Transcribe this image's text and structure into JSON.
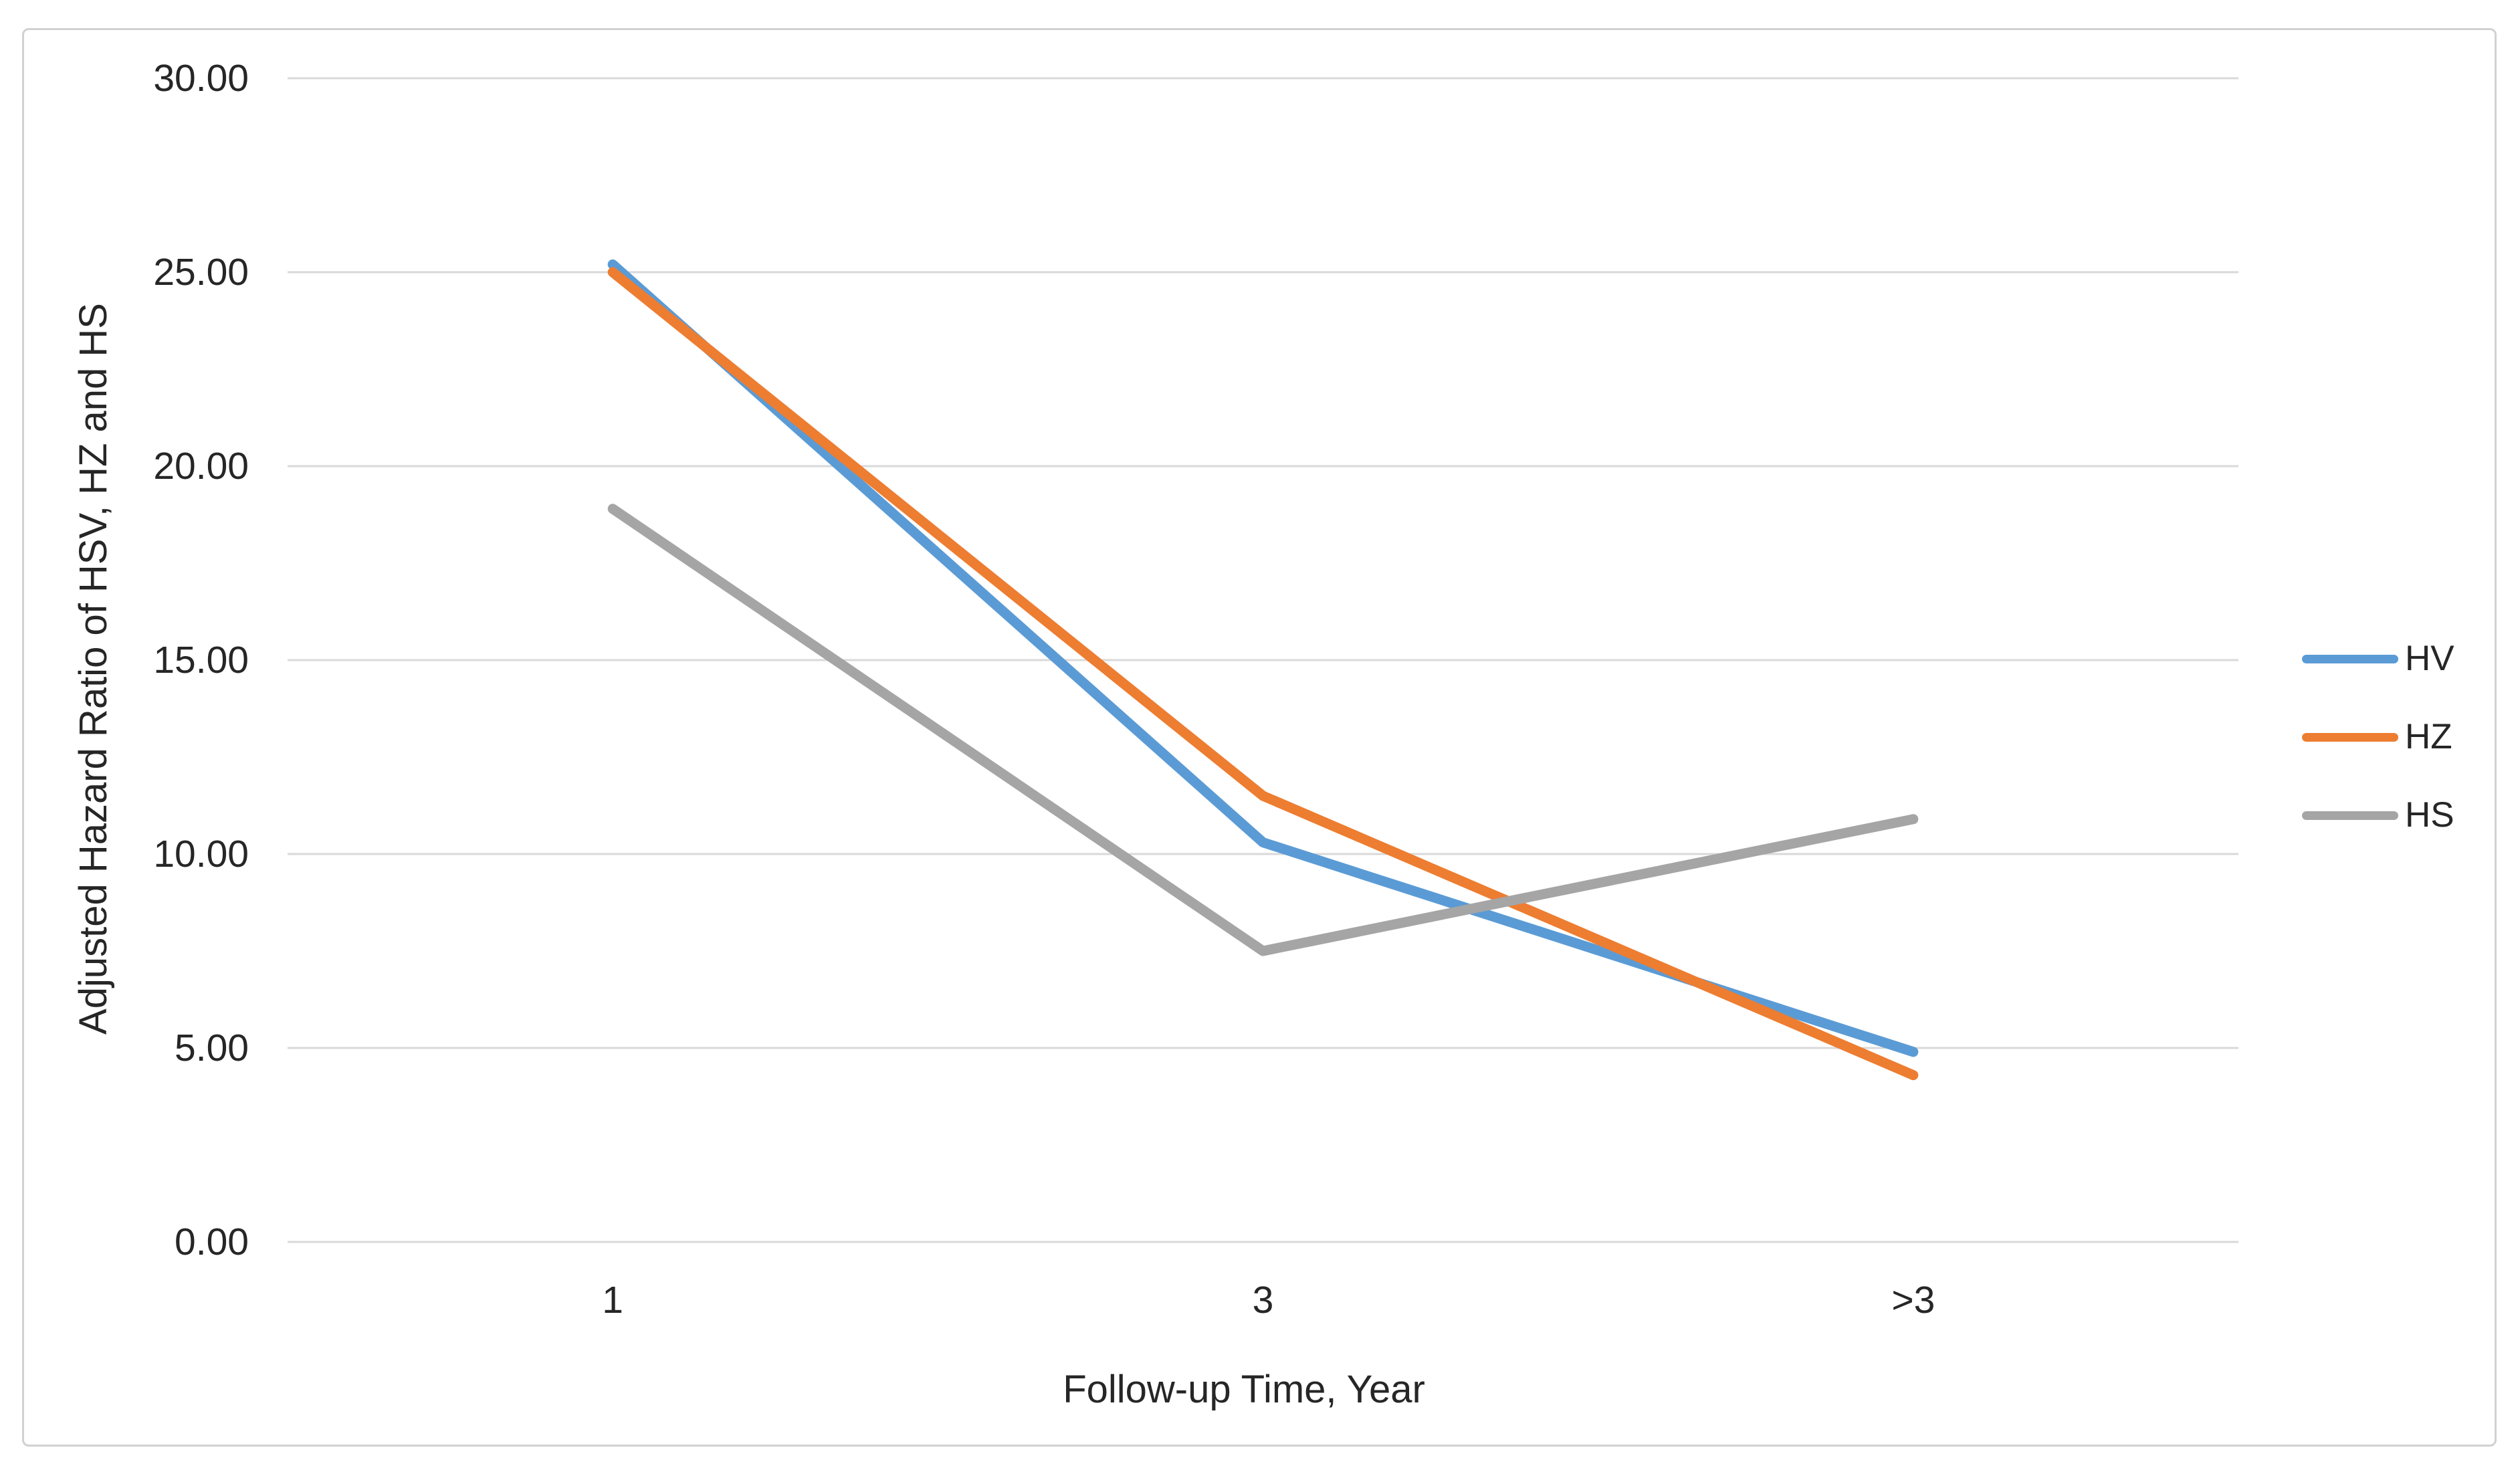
{
  "chart_data": {
    "type": "line",
    "categories": [
      "1",
      "3",
      ">3"
    ],
    "series": [
      {
        "name": "HV",
        "color": "#5B9BD5",
        "values": [
          25.2,
          10.3,
          4.9
        ]
      },
      {
        "name": "HZ",
        "color": "#ED7D31",
        "values": [
          25.0,
          11.5,
          4.3
        ]
      },
      {
        "name": "HS",
        "color": "#A5A5A5",
        "values": [
          18.9,
          7.5,
          10.9
        ]
      }
    ],
    "title": "",
    "xlabel": "Follow-up Time, Year",
    "ylabel": "Adjusted Hazard Ratio of HSV, HZ and HS",
    "ylim": [
      0,
      30
    ],
    "y_ticks": {
      "values": [
        0,
        5,
        10,
        15,
        20,
        25,
        30
      ],
      "labels": [
        "0.00",
        "5.00",
        "10.00",
        "15.00",
        "20.00",
        "25.00",
        "30.00"
      ]
    },
    "grid": true,
    "legend_position": "right",
    "legend": [
      "HV",
      "HZ",
      "HS"
    ],
    "colors": {
      "gridline": "#D9D9D9",
      "frame_border": "#D1D1D1",
      "text": "#262626",
      "background": "#FFFFFF"
    }
  }
}
